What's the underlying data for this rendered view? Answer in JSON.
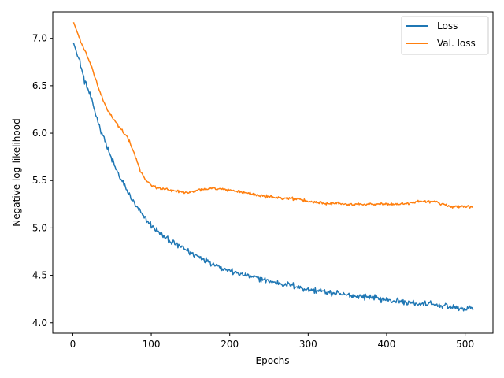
{
  "chart_data": {
    "type": "line",
    "title": "",
    "xlabel": "Epochs",
    "ylabel": "Negative log-likelihood",
    "xlim": [
      -25.5,
      535.5
    ],
    "ylim": [
      3.89,
      7.28
    ],
    "x_ticks": [
      0,
      100,
      200,
      300,
      400,
      500
    ],
    "y_ticks": [
      4.0,
      4.5,
      5.0,
      5.5,
      6.0,
      6.5,
      7.0
    ],
    "y_tick_labels": [
      "4.0",
      "4.5",
      "5.0",
      "5.5",
      "6.0",
      "6.5",
      "7.0"
    ],
    "grid": false,
    "legend": {
      "position": "top-right"
    },
    "series": [
      {
        "name": "Loss",
        "color": "#1f77b4",
        "x": [
          1,
          5,
          10,
          15,
          20,
          25,
          30,
          35,
          40,
          45,
          50,
          55,
          60,
          65,
          70,
          75,
          80,
          85,
          90,
          95,
          100,
          110,
          120,
          130,
          140,
          150,
          160,
          170,
          180,
          190,
          200,
          220,
          240,
          260,
          280,
          300,
          320,
          340,
          360,
          380,
          400,
          420,
          440,
          460,
          480,
          500,
          510
        ],
        "y": [
          6.95,
          6.85,
          6.72,
          6.55,
          6.45,
          6.32,
          6.18,
          6.05,
          5.95,
          5.82,
          5.72,
          5.62,
          5.53,
          5.46,
          5.38,
          5.3,
          5.24,
          5.18,
          5.12,
          5.07,
          5.03,
          4.95,
          4.88,
          4.83,
          4.79,
          4.74,
          4.7,
          4.66,
          4.62,
          4.58,
          4.55,
          4.5,
          4.46,
          4.42,
          4.39,
          4.35,
          4.33,
          4.3,
          4.28,
          4.27,
          4.24,
          4.22,
          4.2,
          4.19,
          4.17,
          4.14,
          4.16
        ],
        "noise": 0.025
      },
      {
        "name": "Val. loss",
        "color": "#ff7f0e",
        "x": [
          1,
          5,
          10,
          15,
          20,
          25,
          30,
          35,
          40,
          45,
          50,
          55,
          60,
          65,
          70,
          75,
          80,
          85,
          90,
          95,
          100,
          110,
          120,
          130,
          140,
          150,
          160,
          170,
          180,
          190,
          200,
          220,
          240,
          260,
          280,
          300,
          320,
          340,
          360,
          380,
          400,
          420,
          440,
          460,
          480,
          500,
          510
        ],
        "y": [
          7.17,
          7.08,
          6.97,
          6.87,
          6.78,
          6.67,
          6.55,
          6.42,
          6.32,
          6.24,
          6.17,
          6.11,
          6.06,
          6.01,
          5.95,
          5.85,
          5.75,
          5.62,
          5.55,
          5.49,
          5.45,
          5.42,
          5.4,
          5.39,
          5.38,
          5.38,
          5.4,
          5.41,
          5.42,
          5.41,
          5.4,
          5.37,
          5.34,
          5.32,
          5.31,
          5.28,
          5.26,
          5.26,
          5.25,
          5.25,
          5.25,
          5.25,
          5.28,
          5.28,
          5.23,
          5.22,
          5.22
        ],
        "noise": 0.012
      }
    ]
  }
}
